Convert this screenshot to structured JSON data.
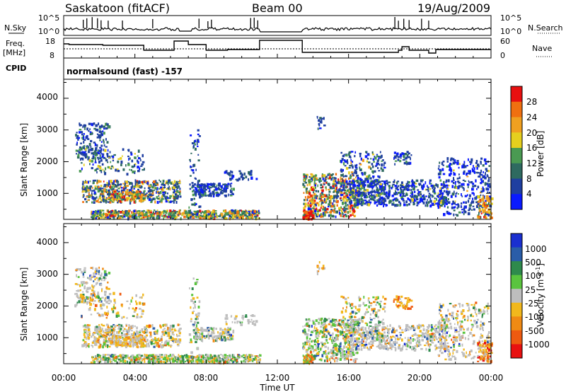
{
  "header": {
    "station": "Saskatoon (fitACF)",
    "beam": "Beam 00",
    "date": "19/Aug/2009"
  },
  "side_labels": {
    "nsky": "N.Sky",
    "nsearch": "N.Search",
    "freq": "Freq.",
    "freq_unit": "[MHz]",
    "nave": "Nave",
    "cpid": "CPID"
  },
  "noise_panel": {
    "left_ticks": [
      "10^5",
      "10^0"
    ],
    "right_ticks": [
      "10^5",
      "10^0"
    ]
  },
  "freq_panel": {
    "left_ticks": [
      "18",
      "8"
    ],
    "right_ticks": [
      "60",
      "0"
    ]
  },
  "cpid_panel": {
    "text": "normalsound (fast) -157"
  },
  "colors": {
    "power": [
      "#0a1aff",
      "#1f3fa0",
      "#2e6a60",
      "#4a9a52",
      "#e6cf1e",
      "#f0a020",
      "#f07010",
      "#e81010"
    ],
    "velocity": [
      "#1a2fd0",
      "#2a5da8",
      "#2e8a4c",
      "#5ac43e",
      "#bebebe",
      "#f2b81c",
      "#f08a14",
      "#ee5a10",
      "#e81010"
    ]
  },
  "chart_data": [
    {
      "type": "heatmap",
      "name": "power",
      "xlabel": "",
      "ylabel": "Slant Range [km]",
      "xlim": [
        0,
        24
      ],
      "ylim": [
        180,
        4600
      ],
      "yticks": [
        "1000",
        "2000",
        "3000",
        "4000"
      ],
      "colorbar": {
        "label": "Power [dB]",
        "range": [
          0,
          32
        ],
        "ticks": [
          "28",
          "24",
          "20",
          "16",
          "12",
          "8",
          "4"
        ]
      }
    },
    {
      "type": "heatmap",
      "name": "velocity",
      "xlabel": "Time UT",
      "ylabel": "Slant Range [km]",
      "xlim": [
        0,
        24
      ],
      "ylim": [
        180,
        4600
      ],
      "xticks": [
        "00:00",
        "04:00",
        "08:00",
        "12:00",
        "16:00",
        "20:00",
        "00:00"
      ],
      "yticks": [
        "1000",
        "2000",
        "3000",
        "4000"
      ],
      "colorbar": {
        "label": "Velocity [m s^-1]",
        "ticks": [
          "1000",
          "500",
          "100",
          "25",
          "-25",
          "-100",
          "-500",
          "-1000"
        ]
      }
    }
  ]
}
